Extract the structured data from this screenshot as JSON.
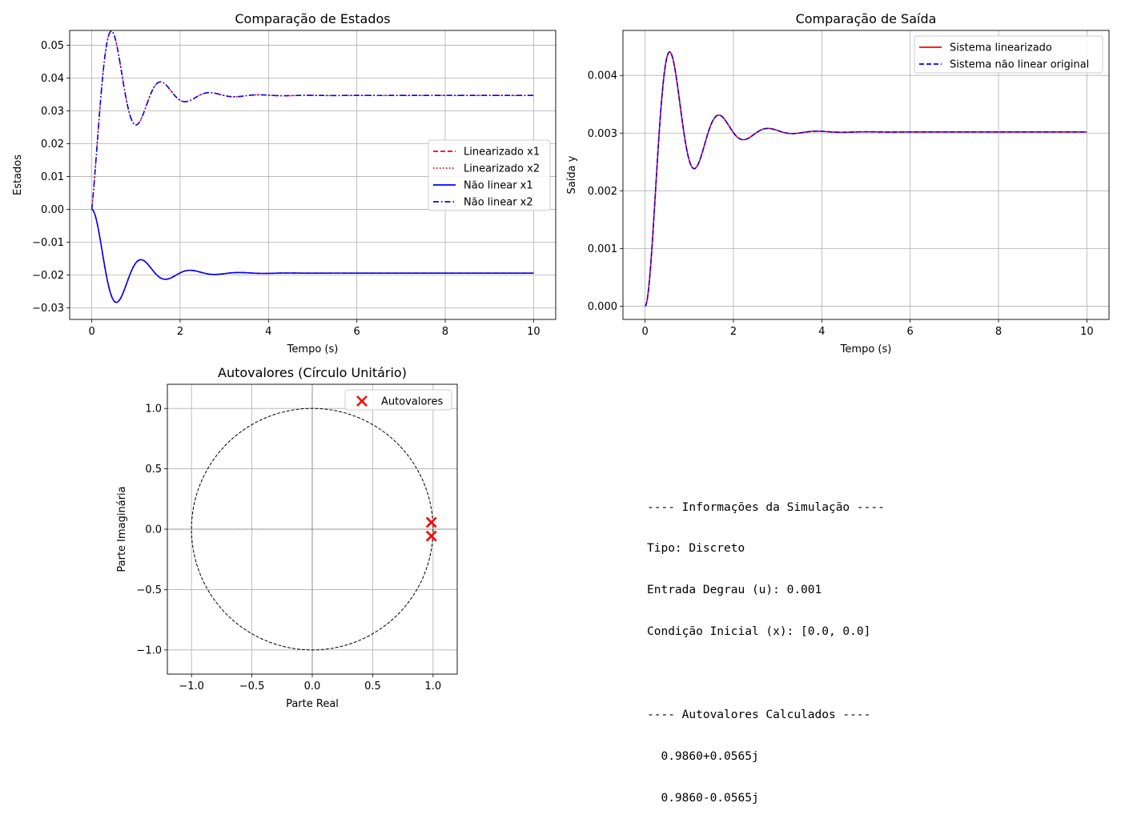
{
  "chart_data": [
    {
      "id": "states",
      "type": "line",
      "title": "Comparação de Estados",
      "xlabel": "Tempo (s)",
      "ylabel": "Estados",
      "xlim": [
        -0.5,
        10.5
      ],
      "ylim": [
        -0.0335,
        0.0545
      ],
      "xticks": [
        0,
        2,
        4,
        6,
        8,
        10
      ],
      "yticks": [
        -0.03,
        -0.02,
        -0.01,
        0.0,
        0.01,
        0.02,
        0.03,
        0.04,
        0.05
      ],
      "xtick_labels": [
        "0",
        "2",
        "4",
        "6",
        "8",
        "10"
      ],
      "ytick_labels": [
        "−0.03",
        "−0.02",
        "−0.01",
        "0.00",
        "0.01",
        "0.02",
        "0.03",
        "0.04",
        "0.05"
      ],
      "grid": true,
      "legend_position": "center-right",
      "series": [
        {
          "name": "Linearizado x1",
          "color": "#ff0000",
          "dash": "dashed",
          "model": {
            "final": -0.0194,
            "wd": 5.65,
            "sigma": 1.4,
            "kind": "position"
          }
        },
        {
          "name": "Linearizado x2",
          "color": "#ff0000",
          "dash": "dotted",
          "model": {
            "final": 0.0347,
            "wd": 5.65,
            "sigma": 1.4,
            "kind": "velocity"
          }
        },
        {
          "name": "Não linear x1",
          "color": "#0000ff",
          "dash": "solid",
          "model": {
            "final": -0.0194,
            "wd": 5.65,
            "sigma": 1.4,
            "kind": "position"
          }
        },
        {
          "name": "Não linear x2",
          "color": "#0000ff",
          "dash": "dashdot",
          "model": {
            "final": 0.0347,
            "wd": 5.65,
            "sigma": 1.4,
            "kind": "velocity"
          }
        }
      ],
      "x_range": [
        0,
        10
      ]
    },
    {
      "id": "output",
      "type": "line",
      "title": "Comparação de Saída",
      "xlabel": "Tempo (s)",
      "ylabel": "Saída y",
      "xlim": [
        -0.5,
        10.5
      ],
      "ylim": [
        -0.00023,
        0.00478
      ],
      "xticks": [
        0,
        2,
        4,
        6,
        8,
        10
      ],
      "yticks": [
        0.0,
        0.001,
        0.002,
        0.003,
        0.004
      ],
      "xtick_labels": [
        "0",
        "2",
        "4",
        "6",
        "8",
        "10"
      ],
      "ytick_labels": [
        "0.000",
        "0.001",
        "0.002",
        "0.003",
        "0.004"
      ],
      "grid": true,
      "legend_position": "upper-right",
      "series": [
        {
          "name": "Sistema linearizado",
          "color": "#ff0000",
          "dash": "solid",
          "model": {
            "final": 0.00302,
            "wd": 5.65,
            "sigma": 1.4,
            "kind": "position"
          }
        },
        {
          "name": "Sistema não linear original",
          "color": "#0000ff",
          "dash": "dashed",
          "model": {
            "final": 0.00302,
            "wd": 5.65,
            "sigma": 1.4,
            "kind": "position"
          }
        }
      ],
      "x_range": [
        0,
        10
      ]
    },
    {
      "id": "eigen",
      "type": "scatter",
      "title": "Autovalores (Círculo Unitário)",
      "xlabel": "Parte Real",
      "ylabel": "Parte Imaginária",
      "xlim": [
        -1.2,
        1.2
      ],
      "ylim": [
        -1.2,
        1.2
      ],
      "xticks": [
        -1.0,
        -0.5,
        0.0,
        0.5,
        1.0
      ],
      "yticks": [
        -1.0,
        -0.5,
        0.0,
        0.5,
        1.0
      ],
      "xtick_labels": [
        "−1.0",
        "−0.5",
        "0.0",
        "0.5",
        "1.0"
      ],
      "ytick_labels": [
        "−1.0",
        "−0.5",
        "0.0",
        "0.5",
        "1.0"
      ],
      "grid": true,
      "legend_position": "upper-right",
      "unit_circle": true,
      "series": [
        {
          "name": "Autovalores",
          "color": "#ff0000",
          "marker": "x",
          "points": [
            [
              0.986,
              0.0565
            ],
            [
              0.986,
              -0.0565
            ]
          ]
        }
      ]
    }
  ],
  "info": {
    "lines": [
      "---- Informações da Simulação ----",
      "Tipo: Discreto",
      "Entrada Degrau (u): 0.001",
      "Condição Inicial (x): [0.0, 0.0]",
      "",
      "---- Autovalores Calculados ----",
      "  0.9860+0.0565j",
      "  0.9860-0.0565j"
    ]
  }
}
